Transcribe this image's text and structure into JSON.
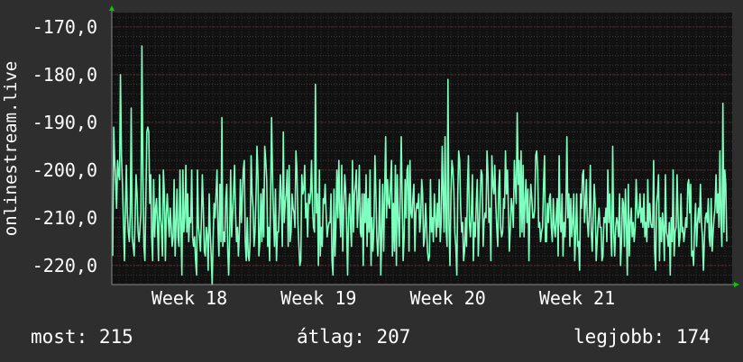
{
  "chart_data": {
    "type": "line",
    "title": "",
    "ylabel": "onlinestream.live",
    "xlabel": "",
    "ylim": [
      -224,
      -167
    ],
    "yticks": [
      -220,
      -210,
      -200,
      -190,
      -180,
      -170
    ],
    "ytick_labels": [
      "-220,0",
      "-210,0",
      "-200,0",
      "-190,0",
      "-180,0",
      "-170,0"
    ],
    "xlim": [
      17.4,
      22.2
    ],
    "xticks": [
      18,
      19,
      20,
      21
    ],
    "xtick_labels": [
      "Week 18",
      "Week 19",
      "Week 20",
      "Week 21"
    ],
    "grid": true,
    "colors": {
      "background": "#2e2e2e",
      "plot_bg": "#111111",
      "line": "#7fffbf",
      "grid": "#4a4a4a",
      "arrow": "#00cc00"
    },
    "series": [
      {
        "values": [
          -218,
          -191,
          -198,
          -202,
          -208,
          -198,
          -201,
          -202,
          -180,
          -197,
          -203,
          -211,
          -219,
          -208,
          -199,
          -209,
          -213,
          -215,
          -209,
          -187,
          -214,
          -216,
          -218,
          -210,
          -201,
          -205,
          -213,
          -215,
          -212,
          -209,
          -174,
          -201,
          -216,
          -219,
          -206,
          -192,
          -191,
          -192,
          -207,
          -201,
          -214,
          -219,
          -202,
          -214,
          -208,
          -206,
          -212,
          -219,
          -201,
          -210,
          -212,
          -218,
          -200,
          -205,
          -219,
          -209,
          -205,
          -210,
          -214,
          -208,
          -212,
          -216,
          -214,
          -202,
          -218,
          -211,
          -204,
          -214,
          -216,
          -200,
          -212,
          -222,
          -200,
          -213,
          -210,
          -199,
          -213,
          -205,
          -215,
          -210,
          -211,
          -200,
          -214,
          -216,
          -214,
          -219,
          -222,
          -200,
          -212,
          -214,
          -217,
          -210,
          -201,
          -208,
          -217,
          -218,
          -212,
          -214,
          -221,
          -205,
          -213,
          -218,
          -224,
          -215,
          -207,
          -210,
          -205,
          -200,
          -212,
          -218,
          -203,
          -215,
          -189,
          -216,
          -213,
          -215,
          -206,
          -203,
          -217,
          -222,
          -214,
          -200,
          -214,
          -209,
          -205,
          -199,
          -209,
          -215,
          -212,
          -218,
          -213,
          -202,
          -211,
          -205,
          -200,
          -198,
          -215,
          -219,
          -210,
          -218,
          -219,
          -215,
          -197,
          -205,
          -208,
          -216,
          -213,
          -206,
          -195,
          -201,
          -218,
          -215,
          -205,
          -215,
          -204,
          -214,
          -195,
          -198,
          -202,
          -216,
          -212,
          -219,
          -206,
          -189,
          -202,
          -210,
          -216,
          -204,
          -219,
          -213,
          -213,
          -208,
          -201,
          -206,
          -216,
          -192,
          -211,
          -207,
          -205,
          -200,
          -216,
          -199,
          -215,
          -213,
          -205,
          -208,
          -209,
          -212,
          -196,
          -200,
          -211,
          -216,
          -220,
          -219,
          -201,
          -205,
          -204,
          -199,
          -210,
          -207,
          -214,
          -205,
          -207,
          -205,
          -198,
          -208,
          -212,
          -213,
          -182,
          -209,
          -205,
          -220,
          -200,
          -218,
          -212,
          -216,
          -206,
          -207,
          -203,
          -209,
          -214,
          -212,
          -211,
          -211,
          -205,
          -219,
          -222,
          -204,
          -218,
          -212,
          -200,
          -210,
          -198,
          -209,
          -214,
          -199,
          -217,
          -208,
          -201,
          -204,
          -212,
          -222,
          -209,
          -205,
          -212,
          -216,
          -198,
          -213,
          -205,
          -203,
          -200,
          -212,
          -207,
          -199,
          -213,
          -214,
          -205,
          -220,
          -205,
          -211,
          -201,
          -216,
          -206,
          -213,
          -200,
          -220,
          -210,
          -217,
          -212,
          -197,
          -205,
          -214,
          -218,
          -213,
          -202,
          -222,
          -214,
          -203,
          -217,
          -205,
          -193,
          -210,
          -202,
          -207,
          -208,
          -203,
          -198,
          -218,
          -207,
          -217,
          -199,
          -220,
          -201,
          -210,
          -216,
          -205,
          -193,
          -206,
          -219,
          -214,
          -202,
          -210,
          -200,
          -199,
          -217,
          -198,
          -209,
          -210,
          -206,
          -203,
          -217,
          -209,
          -207,
          -208,
          -205,
          -213,
          -210,
          -202,
          -205,
          -216,
          -214,
          -207,
          -212,
          -217,
          -219,
          -218,
          -202,
          -213,
          -210,
          -215,
          -205,
          -210,
          -214,
          -207,
          -212,
          -202,
          -215,
          -211,
          -195,
          -204,
          -213,
          -193,
          -212,
          -216,
          -181,
          -211,
          -220,
          -205,
          -198,
          -200,
          -204,
          -213,
          -216,
          -222,
          -205,
          -196,
          -198,
          -208,
          -213,
          -211,
          -219,
          -217,
          -210,
          -216,
          -203,
          -197,
          -211,
          -214,
          -209,
          -201,
          -219,
          -211,
          -214,
          -207,
          -202,
          -218,
          -212,
          -206,
          -200,
          -201,
          -216,
          -211,
          -209,
          -210,
          -196,
          -201,
          -211,
          -208,
          -219,
          -197,
          -203,
          -205,
          -199,
          -207,
          -212,
          -216,
          -204,
          -200,
          -212,
          -214,
          -213,
          -206,
          -208,
          -196,
          -205,
          -200,
          -209,
          -217,
          -212,
          -206,
          -208,
          -212,
          -198,
          -203,
          -207,
          -188,
          -203,
          -198,
          -214,
          -196,
          -213,
          -199,
          -214,
          -207,
          -202,
          -211,
          -204,
          -219,
          -208,
          -203,
          -206,
          -210,
          -210,
          -208,
          -197,
          -196,
          -200,
          -212,
          -211,
          -215,
          -213,
          -212,
          -203,
          -197,
          -215,
          -215,
          -207,
          -211,
          -206,
          -205,
          -212,
          -215,
          -206,
          -212,
          -214,
          -210,
          -206,
          -218,
          -197,
          -211,
          -213,
          -205,
          -218,
          -211,
          -214,
          -208,
          -193,
          -210,
          -205,
          -216,
          -206,
          -214,
          -211,
          -205,
          -219,
          -213,
          -205,
          -216,
          -215,
          -221,
          -205,
          -208,
          -201,
          -200,
          -211,
          -207,
          -202,
          -211,
          -214,
          -209,
          -199,
          -213,
          -217,
          -210,
          -203,
          -207,
          -219,
          -215,
          -211,
          -208,
          -212,
          -212,
          -219,
          -218,
          -210,
          -211,
          -208,
          -215,
          -200,
          -211,
          -205,
          -213,
          -218,
          -195,
          -213,
          -218,
          -212,
          -210,
          -211,
          -214,
          -205,
          -220,
          -215,
          -206,
          -207,
          -216,
          -204,
          -212,
          -222,
          -203,
          -218,
          -211,
          -208,
          -214,
          -211,
          -215,
          -212,
          -202,
          -208,
          -210,
          -209,
          -205,
          -211,
          -208,
          -212,
          -205,
          -214,
          -211,
          -215,
          -202,
          -212,
          -207,
          -211,
          -212,
          -212,
          -198,
          -217,
          -221,
          -207,
          -205,
          -201,
          -219,
          -210,
          -215,
          -209,
          -212,
          -219,
          -201,
          -213,
          -214,
          -216,
          -211,
          -222,
          -210,
          -215,
          -200,
          -218,
          -213,
          -212,
          -201,
          -210,
          -216,
          -214,
          -205,
          -213,
          -212,
          -215,
          -213,
          -210,
          -212,
          -203,
          -202,
          -209,
          -203,
          -218,
          -217,
          -220,
          -212,
          -207,
          -216,
          -211,
          -208,
          -211,
          -203,
          -211,
          -214,
          -221,
          -215,
          -210,
          -209,
          -211,
          -206,
          -214,
          -216,
          -206,
          -217,
          -213,
          -210,
          -208,
          -201,
          -209,
          -205,
          -212,
          -196,
          -210,
          -216,
          -186,
          -213,
          -200,
          -203,
          -215
        ]
      }
    ]
  },
  "legend": {
    "current_label": "most:",
    "current_value": "215",
    "avg_label": "átlag:",
    "avg_value": "207",
    "best_label": "legjobb:",
    "best_value": "174"
  }
}
